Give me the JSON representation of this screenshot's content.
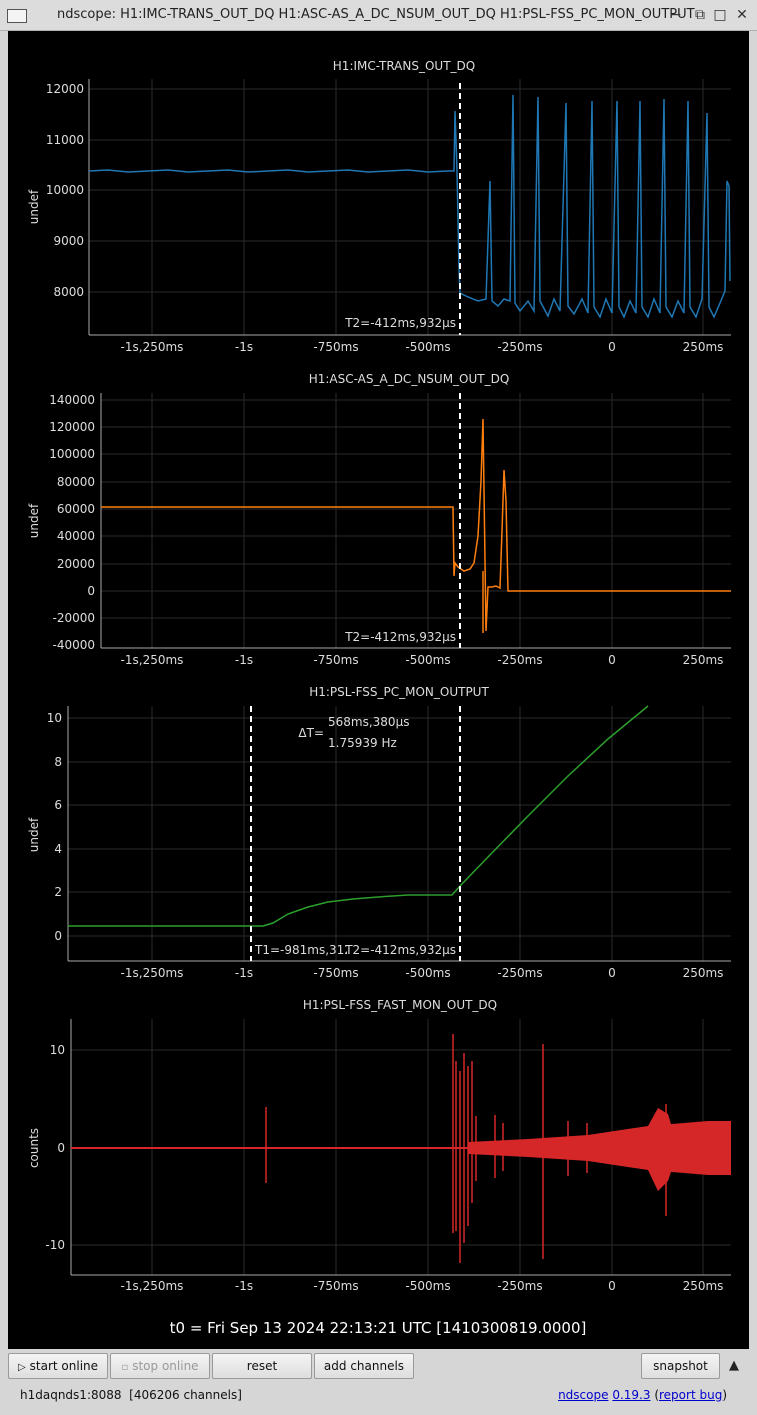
{
  "window": {
    "title": "ndscope: H1:IMC-TRANS_OUT_DQ H1:ASC-AS_A_DC_NSUM_OUT_DQ H1:PSL-FSS_PC_MON_OUTPUT",
    "controls": {
      "minimize": "−",
      "restore": "⧉",
      "maximize": "□",
      "close": "✕"
    }
  },
  "plots": [
    {
      "title": "H1:IMC-TRANS_OUT_DQ",
      "ylabel": "undef",
      "color": "#1f77b4",
      "yticks": [
        "12000",
        "11000",
        "10000",
        "9000",
        "8000"
      ],
      "xticks": [
        "-1s,250ms",
        "-1s",
        "-750ms",
        "-500ms",
        "-250ms",
        "0",
        "250ms"
      ],
      "cursor_label": "T2=-412ms,932µs"
    },
    {
      "title": "H1:ASC-AS_A_DC_NSUM_OUT_DQ",
      "ylabel": "undef",
      "color": "#ff7f0e",
      "yticks": [
        "140000",
        "120000",
        "100000",
        "80000",
        "60000",
        "40000",
        "20000",
        "0",
        "-20000",
        "-40000"
      ],
      "xticks": [
        "-1s,250ms",
        "-1s",
        "-750ms",
        "-500ms",
        "-250ms",
        "0",
        "250ms"
      ],
      "cursor_label": "T2=-412ms,932µs"
    },
    {
      "title": "H1:PSL-FSS_PC_MON_OUTPUT",
      "ylabel": "undef",
      "color": "#2ca02c",
      "yticks": [
        "10",
        "8",
        "6",
        "4",
        "2",
        "0"
      ],
      "xticks": [
        "-1s,250ms",
        "-1s",
        "-750ms",
        "-500ms",
        "-250ms",
        "0",
        "250ms"
      ],
      "cursor_t1_label": "T1=-981ms,312",
      "cursor_t2_label": "T2=-412ms,932µs",
      "delta_prefix": "ΔT=",
      "delta_time": "568ms,380µs",
      "delta_freq": "1.75939 Hz"
    },
    {
      "title": "H1:PSL-FSS_FAST_MON_OUT_DQ",
      "ylabel": "counts",
      "color": "#d62728",
      "yticks": [
        "10",
        "0",
        "-10"
      ],
      "xticks": [
        "-1s,250ms",
        "-1s",
        "-750ms",
        "-500ms",
        "-250ms",
        "0",
        "250ms"
      ]
    }
  ],
  "t0_label": "t0 = Fri Sep 13 2024 22:13:21 UTC [1410300819.0000]",
  "buttons": {
    "start_online": "start online",
    "stop_online": "stop online",
    "reset": "reset",
    "add_channels": "add channels",
    "snapshot": "snapshot"
  },
  "status": {
    "server": "h1daqnds1:8088",
    "channels": "[406206 channels]",
    "app_name": "ndscope",
    "version": "0.19.3",
    "report_bug": "report bug"
  }
}
